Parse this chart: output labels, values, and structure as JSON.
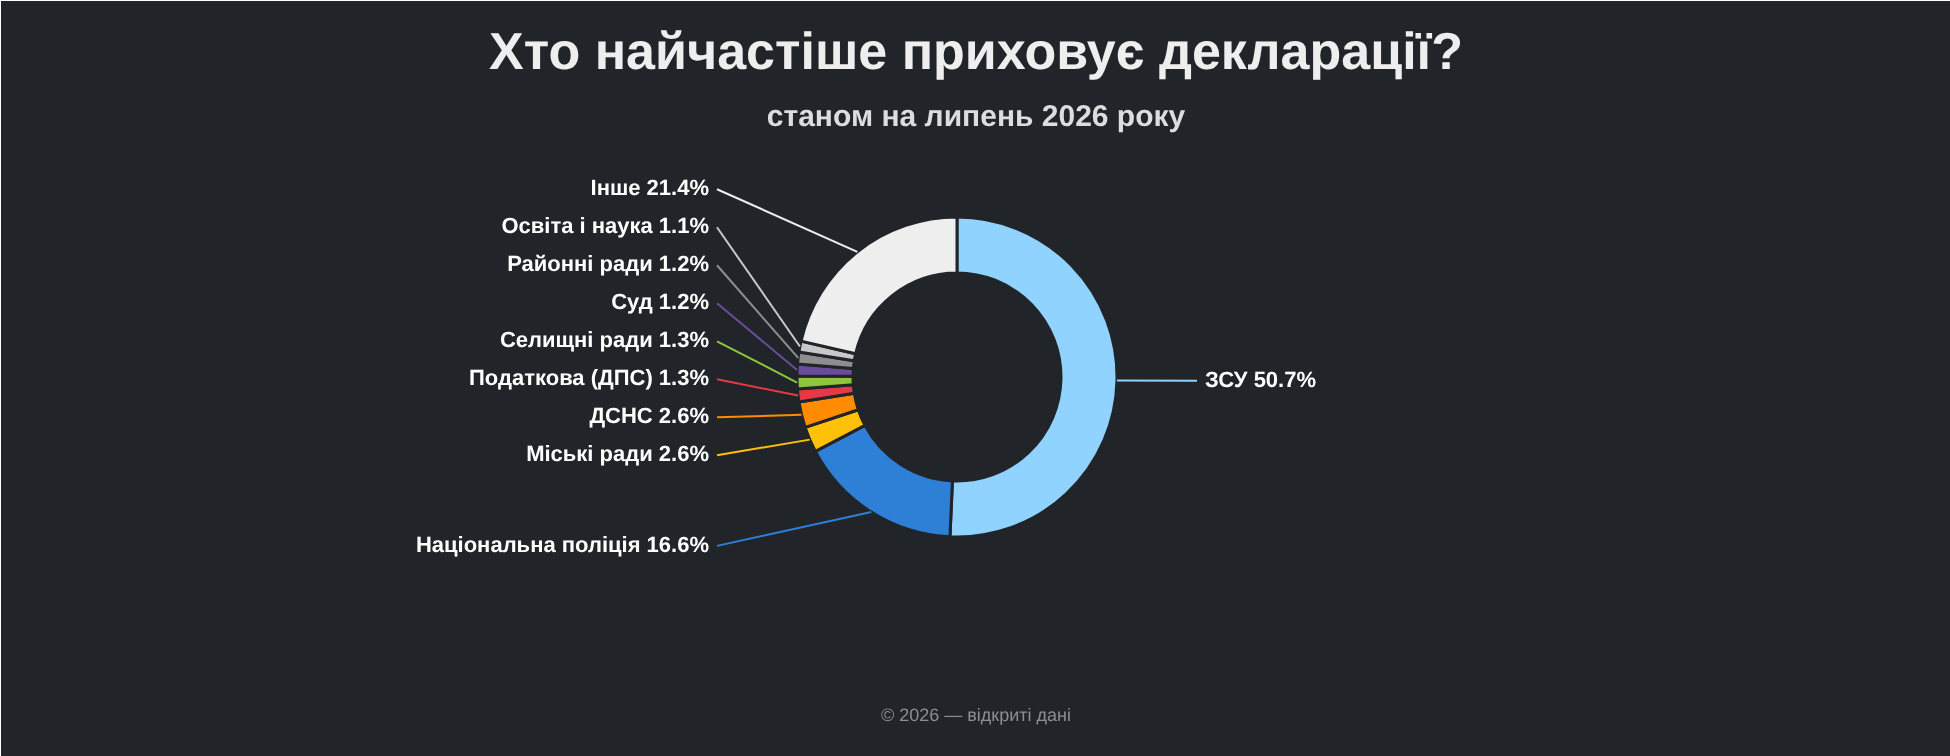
{
  "chart_data": {
    "type": "donut",
    "title": "Хто найчастіше приховує декларації?",
    "subtitle": "станом на липень 2026 року",
    "categories": [
      "ЗСУ",
      "Національна поліція",
      "Міські ради",
      "ДСНС",
      "Податкова (ДПС)",
      "Селищні ради",
      "Суд",
      "Районні ради",
      "Освіта і наука",
      "Інше"
    ],
    "values": [
      50.7,
      16.6,
      2.6,
      2.6,
      1.3,
      1.3,
      1.2,
      1.2,
      1.1,
      21.4
    ],
    "colors": [
      "#8fd3fe",
      "#2e7fd6",
      "#ffc107",
      "#ff8c00",
      "#e63946",
      "#8cc63f",
      "#6a4c9c",
      "#8e8e8e",
      "#c8c8c8",
      "#eeeeee"
    ],
    "value_labels": [
      "50.7%",
      "16.6%",
      "2.6%",
      "2.6%",
      "1.3%",
      "1.3%",
      "1.2%",
      "1.2%",
      "1.1%",
      "21.4%"
    ],
    "annotations": [
      "© 2026 — відкриті дані"
    ]
  }
}
